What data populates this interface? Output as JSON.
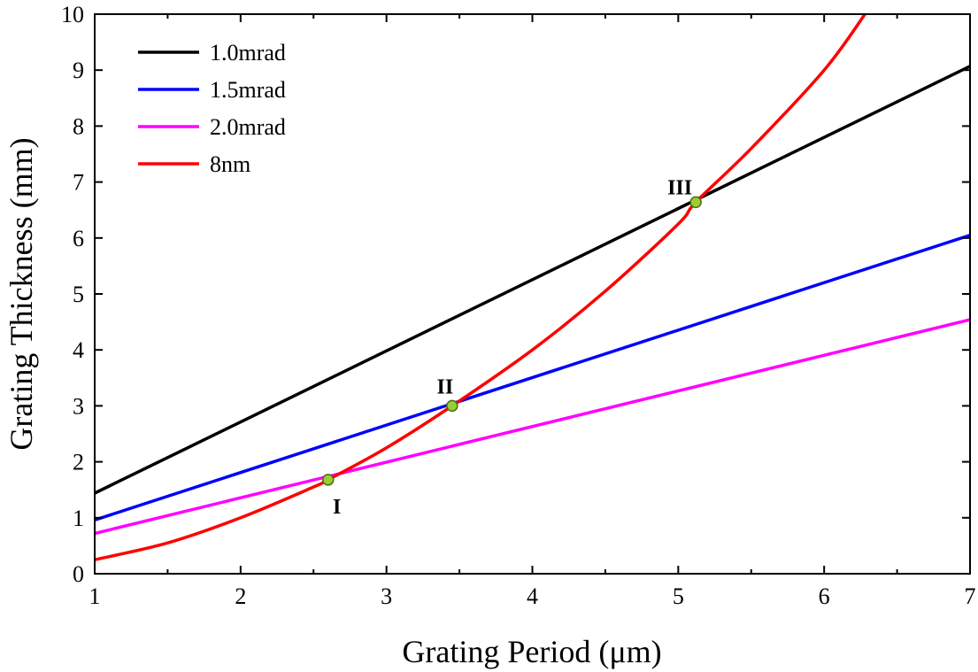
{
  "chart_data": {
    "type": "line",
    "xlabel": "Grating Period (μm)",
    "ylabel": "Grating Thickness (mm)",
    "xlim": [
      1,
      7
    ],
    "ylim": [
      0,
      10
    ],
    "xticks": [
      "1",
      "2",
      "3",
      "4",
      "5",
      "6",
      "7"
    ],
    "yticks": [
      "0",
      "1",
      "2",
      "3",
      "4",
      "5",
      "6",
      "7",
      "8",
      "9",
      "10"
    ],
    "legend_position": "top-left",
    "grid": false,
    "series": [
      {
        "name": "1.0mrad",
        "color": "#000000",
        "x": [
          1,
          7
        ],
        "y": [
          1.44,
          9.07
        ]
      },
      {
        "name": "1.5mrad",
        "color": "#0000ff",
        "x": [
          1,
          7
        ],
        "y": [
          0.96,
          6.05
        ]
      },
      {
        "name": "2.0mrad",
        "color": "#ff00ff",
        "x": [
          1,
          7
        ],
        "y": [
          0.72,
          4.54
        ]
      },
      {
        "name": "8nm",
        "color": "#ff0000",
        "x": [
          1.0,
          1.5,
          2.0,
          2.5,
          2.6,
          3.0,
          3.45,
          4.0,
          4.5,
          5.0,
          5.12,
          5.5,
          6.0,
          6.28
        ],
        "y": [
          0.25,
          0.55,
          1.0,
          1.55,
          1.68,
          2.25,
          3.0,
          4.0,
          5.05,
          6.25,
          6.64,
          7.6,
          9.0,
          10.0
        ]
      }
    ],
    "annotations": [
      {
        "label": "I",
        "x": 2.6,
        "y": 1.68
      },
      {
        "label": "II",
        "x": 3.45,
        "y": 3.0
      },
      {
        "label": "III",
        "x": 5.12,
        "y": 6.64
      }
    ]
  }
}
